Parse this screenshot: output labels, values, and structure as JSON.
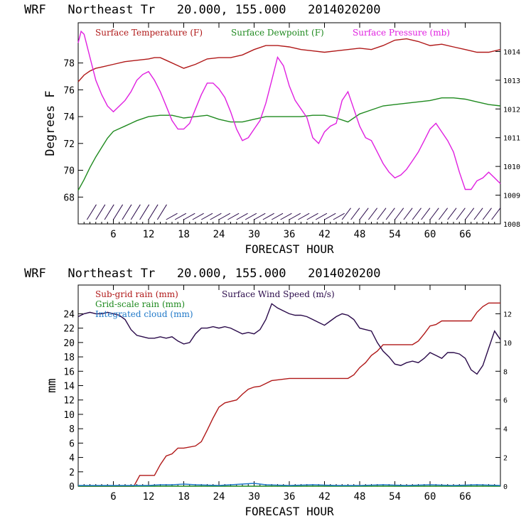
{
  "chart_data": [
    {
      "type": "line",
      "title": "WRF   Northeast Tr   20.000, 155.000   2014020200",
      "xlabel": "FORECAST HOUR",
      "ylabel": "Degrees F",
      "xlim": [
        0,
        72
      ],
      "ylim": [
        66,
        81
      ],
      "y2lim": [
        1008,
        1015
      ],
      "x_ticks": [
        6,
        12,
        18,
        24,
        30,
        36,
        42,
        48,
        54,
        60,
        66
      ],
      "y_ticks": [
        68,
        70,
        72,
        74,
        76,
        78
      ],
      "y2_ticks": [
        1008,
        1009,
        1010,
        1011,
        1012,
        1013,
        1014
      ],
      "legend": [
        "Surface Temperature (F)",
        "Surface Dewpoint (F)",
        "Surface Pressure (mb)"
      ],
      "colors": {
        "temperature": "#b01818",
        "dewpoint": "#1f8a1f",
        "pressure": "#e020e0",
        "barbs": "#2a0a4a",
        "axes": "#000000"
      },
      "series": [
        {
          "name": "Surface Temperature (F)",
          "axis": "left",
          "x": [
            0,
            1,
            2,
            3,
            4,
            6,
            8,
            10,
            12,
            13,
            14,
            15,
            17,
            18,
            20,
            22,
            24,
            26,
            28,
            30,
            32,
            34,
            36,
            38,
            40,
            42,
            44,
            46,
            48,
            50,
            52,
            54,
            56,
            58,
            60,
            62,
            64,
            66,
            68,
            70,
            72
          ],
          "values": [
            76.6,
            77.1,
            77.4,
            77.6,
            77.7,
            77.9,
            78.1,
            78.2,
            78.3,
            78.4,
            78.4,
            78.2,
            77.8,
            77.6,
            77.9,
            78.3,
            78.4,
            78.4,
            78.6,
            79.0,
            79.3,
            79.3,
            79.2,
            79.0,
            78.9,
            78.8,
            78.9,
            79.0,
            79.1,
            79.0,
            79.3,
            79.7,
            79.8,
            79.6,
            79.3,
            79.4,
            79.2,
            79.0,
            78.8,
            78.8,
            79.0
          ]
        },
        {
          "name": "Surface Dewpoint (F)",
          "axis": "left",
          "x": [
            0,
            1,
            2,
            3,
            4,
            5,
            6,
            7,
            8,
            9,
            10,
            12,
            14,
            16,
            18,
            20,
            22,
            24,
            26,
            28,
            30,
            32,
            34,
            36,
            38,
            40,
            42,
            44,
            46,
            48,
            50,
            52,
            54,
            56,
            58,
            60,
            62,
            64,
            66,
            68,
            70,
            72
          ],
          "values": [
            68.5,
            69.3,
            70.2,
            71.0,
            71.7,
            72.4,
            72.9,
            73.1,
            73.3,
            73.5,
            73.7,
            74.0,
            74.1,
            74.1,
            73.9,
            74.0,
            74.1,
            73.8,
            73.6,
            73.6,
            73.8,
            74.0,
            74.0,
            74.0,
            74.0,
            74.1,
            74.1,
            73.9,
            73.6,
            74.2,
            74.5,
            74.8,
            74.9,
            75.0,
            75.1,
            75.2,
            75.4,
            75.4,
            75.3,
            75.1,
            74.9,
            74.8
          ]
        },
        {
          "name": "Surface Pressure (mb)",
          "axis": "right",
          "x": [
            0,
            0.5,
            1,
            1.5,
            2,
            3,
            4,
            5,
            6,
            7,
            8,
            9,
            10,
            11,
            12,
            13,
            14,
            15,
            16,
            17,
            18,
            19,
            20,
            21,
            22,
            23,
            24,
            25,
            26,
            27,
            28,
            29,
            30,
            31,
            32,
            33,
            34,
            35,
            36,
            37,
            38,
            39,
            40,
            41,
            42,
            43,
            44,
            45,
            46,
            47,
            48,
            49,
            50,
            51,
            52,
            53,
            54,
            55,
            56,
            57,
            58,
            59,
            60,
            61,
            62,
            63,
            64,
            65,
            66,
            67,
            68,
            69,
            70,
            71,
            72
          ],
          "values": [
            1014.3,
            1014.7,
            1014.6,
            1014.2,
            1013.8,
            1013.0,
            1012.5,
            1012.1,
            1011.9,
            1012.1,
            1012.3,
            1012.6,
            1013.0,
            1013.2,
            1013.3,
            1013.0,
            1012.6,
            1012.1,
            1011.6,
            1011.3,
            1011.3,
            1011.5,
            1012.0,
            1012.5,
            1012.9,
            1012.9,
            1012.7,
            1012.4,
            1011.9,
            1011.3,
            1010.9,
            1011.0,
            1011.3,
            1011.6,
            1012.2,
            1013.0,
            1013.8,
            1013.5,
            1012.8,
            1012.3,
            1012.0,
            1011.7,
            1011.0,
            1010.8,
            1011.2,
            1011.4,
            1011.5,
            1012.3,
            1012.6,
            1012.0,
            1011.4,
            1011.0,
            1010.9,
            1010.5,
            1010.1,
            1009.8,
            1009.6,
            1009.7,
            1009.9,
            1010.2,
            1010.5,
            1010.9,
            1011.3,
            1011.5,
            1011.2,
            1010.9,
            1010.5,
            1009.8,
            1009.2,
            1009.2,
            1009.5,
            1009.6,
            1009.8,
            1009.6,
            1009.4
          ]
        }
      ],
      "wind_barbs": {
        "x_start": 1.5,
        "x_end": 71.5,
        "step": 1.5
      }
    },
    {
      "type": "line",
      "title": "WRF   Northeast Tr   20.000, 155.000   2014020200",
      "xlabel": "FORECAST HOUR",
      "ylabel": "mm",
      "xlim": [
        0,
        72
      ],
      "ylim": [
        0,
        28
      ],
      "y2lim": [
        0,
        14
      ],
      "x_ticks": [
        6,
        12,
        18,
        24,
        30,
        36,
        42,
        48,
        54,
        60,
        66
      ],
      "y_ticks": [
        0,
        2,
        4,
        6,
        8,
        10,
        12,
        14,
        16,
        18,
        20,
        22,
        24
      ],
      "y2_ticks": [
        0,
        2,
        4,
        6,
        8,
        10,
        12
      ],
      "legend": [
        "Sub-grid rain (mm)",
        "Grid-scale rain (mm)",
        "Integrated cloud (mm)",
        "Surface Wind Speed (m/s)"
      ],
      "colors": {
        "subgrid": "#b01818",
        "gridscale": "#1f8a1f",
        "cloud": "#1f78c8",
        "wind": "#2a0a4a",
        "axes": "#000000"
      },
      "series": [
        {
          "name": "Sub-grid rain (mm)",
          "axis": "left",
          "x": [
            0,
            9.5,
            10.5,
            13,
            14,
            15,
            16,
            17,
            18,
            20,
            21,
            22,
            23,
            24,
            25,
            26,
            27,
            28,
            29,
            30,
            31,
            32,
            33,
            34,
            36,
            38,
            40,
            42,
            44,
            46,
            47,
            48,
            49,
            50,
            51,
            52,
            53,
            54,
            55,
            56,
            57,
            58,
            59,
            60,
            61,
            62,
            64,
            66,
            67,
            68,
            69,
            70,
            71,
            72
          ],
          "values": [
            0,
            0,
            1.5,
            1.5,
            3.0,
            4.2,
            4.5,
            5.3,
            5.3,
            5.6,
            6.2,
            7.8,
            9.5,
            11.0,
            11.6,
            11.8,
            12.0,
            12.8,
            13.5,
            13.8,
            13.9,
            14.3,
            14.7,
            14.8,
            15.0,
            15.0,
            15.0,
            15.0,
            15.0,
            15.0,
            15.5,
            16.5,
            17.2,
            18.2,
            18.8,
            19.7,
            19.7,
            19.7,
            19.7,
            19.7,
            19.7,
            20.2,
            21.2,
            22.3,
            22.5,
            23.0,
            23.0,
            23.0,
            23.0,
            24.2,
            25.0,
            25.5,
            25.5,
            25.5
          ]
        },
        {
          "name": "Grid-scale rain (mm)",
          "axis": "left",
          "x": [
            0,
            72
          ],
          "values": [
            0,
            0
          ]
        },
        {
          "name": "Integrated cloud (mm)",
          "axis": "left",
          "x": [
            0,
            6,
            12,
            14,
            16,
            18,
            20,
            24,
            28,
            30,
            32,
            36,
            40,
            44,
            48,
            52,
            56,
            60,
            64,
            68,
            72
          ],
          "values": [
            0.1,
            0.1,
            0.1,
            0.2,
            0.2,
            0.3,
            0.2,
            0.1,
            0.3,
            0.4,
            0.2,
            0.1,
            0.2,
            0.1,
            0.1,
            0.2,
            0.1,
            0.2,
            0.1,
            0.2,
            0.1
          ]
        },
        {
          "name": "Surface Wind Speed (m/s)",
          "axis": "right",
          "x": [
            0,
            1,
            2,
            3,
            4,
            5,
            6,
            7,
            8,
            9,
            10,
            11,
            12,
            13,
            14,
            15,
            16,
            17,
            18,
            19,
            20,
            21,
            22,
            23,
            24,
            25,
            26,
            27,
            28,
            29,
            30,
            31,
            32,
            33,
            34,
            35,
            36,
            37,
            38,
            39,
            40,
            41,
            42,
            43,
            44,
            45,
            46,
            47,
            48,
            49,
            50,
            51,
            52,
            53,
            54,
            55,
            56,
            57,
            58,
            59,
            60,
            61,
            62,
            63,
            64,
            65,
            66,
            67,
            68,
            69,
            70,
            71,
            72
          ],
          "values": [
            11.8,
            12.0,
            12.1,
            12.0,
            12.0,
            12.1,
            12.0,
            11.9,
            11.6,
            10.9,
            10.5,
            10.4,
            10.3,
            10.3,
            10.4,
            10.3,
            10.4,
            10.1,
            9.9,
            10.0,
            10.6,
            11.0,
            11.0,
            11.1,
            11.0,
            11.1,
            11.0,
            10.8,
            10.6,
            10.7,
            10.6,
            10.9,
            11.6,
            12.7,
            12.4,
            12.2,
            12.0,
            11.9,
            11.9,
            11.8,
            11.6,
            11.4,
            11.2,
            11.5,
            11.8,
            12.0,
            11.9,
            11.6,
            11.0,
            10.9,
            10.8,
            10.0,
            9.4,
            9.0,
            8.5,
            8.4,
            8.6,
            8.7,
            8.6,
            8.9,
            9.3,
            9.1,
            8.9,
            9.3,
            9.3,
            9.2,
            8.9,
            8.1,
            7.8,
            8.4,
            9.6,
            10.8,
            10.2
          ]
        }
      ]
    }
  ]
}
